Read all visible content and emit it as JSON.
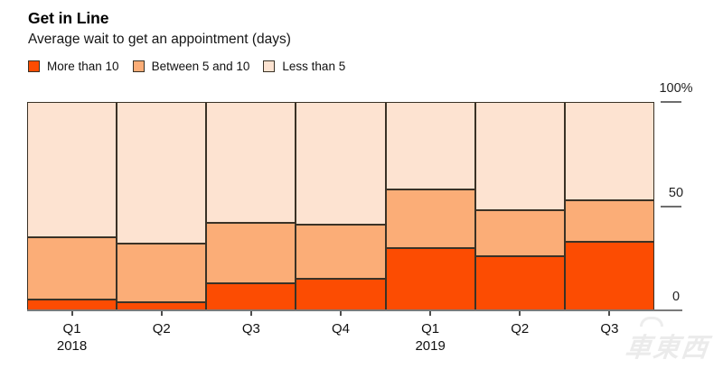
{
  "header": {
    "title": "Get in Line",
    "subtitle": "Average wait to get an appointment (days)"
  },
  "legend_items": [
    {
      "label": "More than 10",
      "color": "#fc4c02"
    },
    {
      "label": "Between 5 and 10",
      "color": "#fbad77"
    },
    {
      "label": "Less than 5",
      "color": "#fde3d1"
    }
  ],
  "chart_data": {
    "type": "bar",
    "variant": "100-percent-stacked-column",
    "title": "Get in Line",
    "subtitle": "Average wait to get an appointment (days)",
    "categories": [
      "Q1 2018",
      "Q2 2018",
      "Q3 2018",
      "Q4 2018",
      "Q1 2019",
      "Q2 2019",
      "Q3 2019"
    ],
    "x_ticks": [
      {
        "label": "Q1",
        "year": "2018"
      },
      {
        "label": "Q2",
        "year": ""
      },
      {
        "label": "Q3",
        "year": ""
      },
      {
        "label": "Q4",
        "year": ""
      },
      {
        "label": "Q1",
        "year": "2019"
      },
      {
        "label": "Q2",
        "year": ""
      },
      {
        "label": "Q3",
        "year": ""
      }
    ],
    "series": [
      {
        "name": "More than 10",
        "color": "#fc4c02",
        "values": [
          5,
          4,
          13,
          15,
          30,
          26,
          33
        ]
      },
      {
        "name": "Between 5 and 10",
        "color": "#fbad77",
        "values": [
          30,
          28,
          29,
          26,
          28,
          22,
          20
        ]
      },
      {
        "name": "Less than 5",
        "color": "#fde3d1",
        "values": [
          65,
          68,
          58,
          59,
          42,
          52,
          47
        ]
      }
    ],
    "stack_order_bottom_to_top": [
      "More than 10",
      "Between 5 and 10",
      "Less than 5"
    ],
    "y_axis": {
      "position": "right",
      "min": 0,
      "max": 100,
      "unit": "%",
      "ticks": [
        {
          "label": "100%",
          "value": 100,
          "has_line": true
        },
        {
          "label": "50",
          "value": 50,
          "has_line": true
        },
        {
          "label": "0",
          "value": 0,
          "has_line": false
        }
      ]
    },
    "legend_position": "top",
    "bar_border_color": "#3a3226",
    "axis_color": "#7a7a7a",
    "grid": false
  },
  "watermark": {
    "text": "車東西"
  }
}
